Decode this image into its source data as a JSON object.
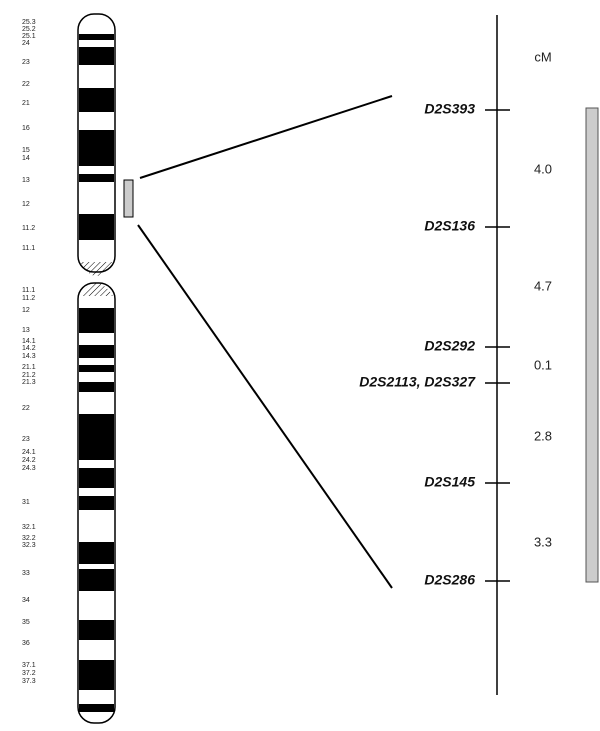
{
  "band_labels": [
    "25.3",
    "25.2",
    "25.1",
    "24",
    "23",
    "22",
    "21",
    "16",
    "15",
    "14",
    "13",
    "12",
    "11.2",
    "11.1",
    "11.1",
    "11.2",
    "12",
    "13",
    "14.1",
    "14.2",
    "14.3",
    "21.1",
    "21.2",
    "21.3",
    "22",
    "23",
    "24.1",
    "24.2",
    "24.3",
    "31",
    "32.1",
    "32.2",
    "32.3",
    "33",
    "34",
    "35",
    "36",
    "37.1",
    "37.2",
    "37.3"
  ],
  "unit": "cM",
  "markers": [
    "D2S393",
    "D2S136",
    "D2S292",
    "D2S2113, D2S327",
    "D2S145",
    "D2S286"
  ],
  "distances": [
    "4.0",
    "4.7",
    "0.1",
    "2.8",
    "3.3"
  ]
}
